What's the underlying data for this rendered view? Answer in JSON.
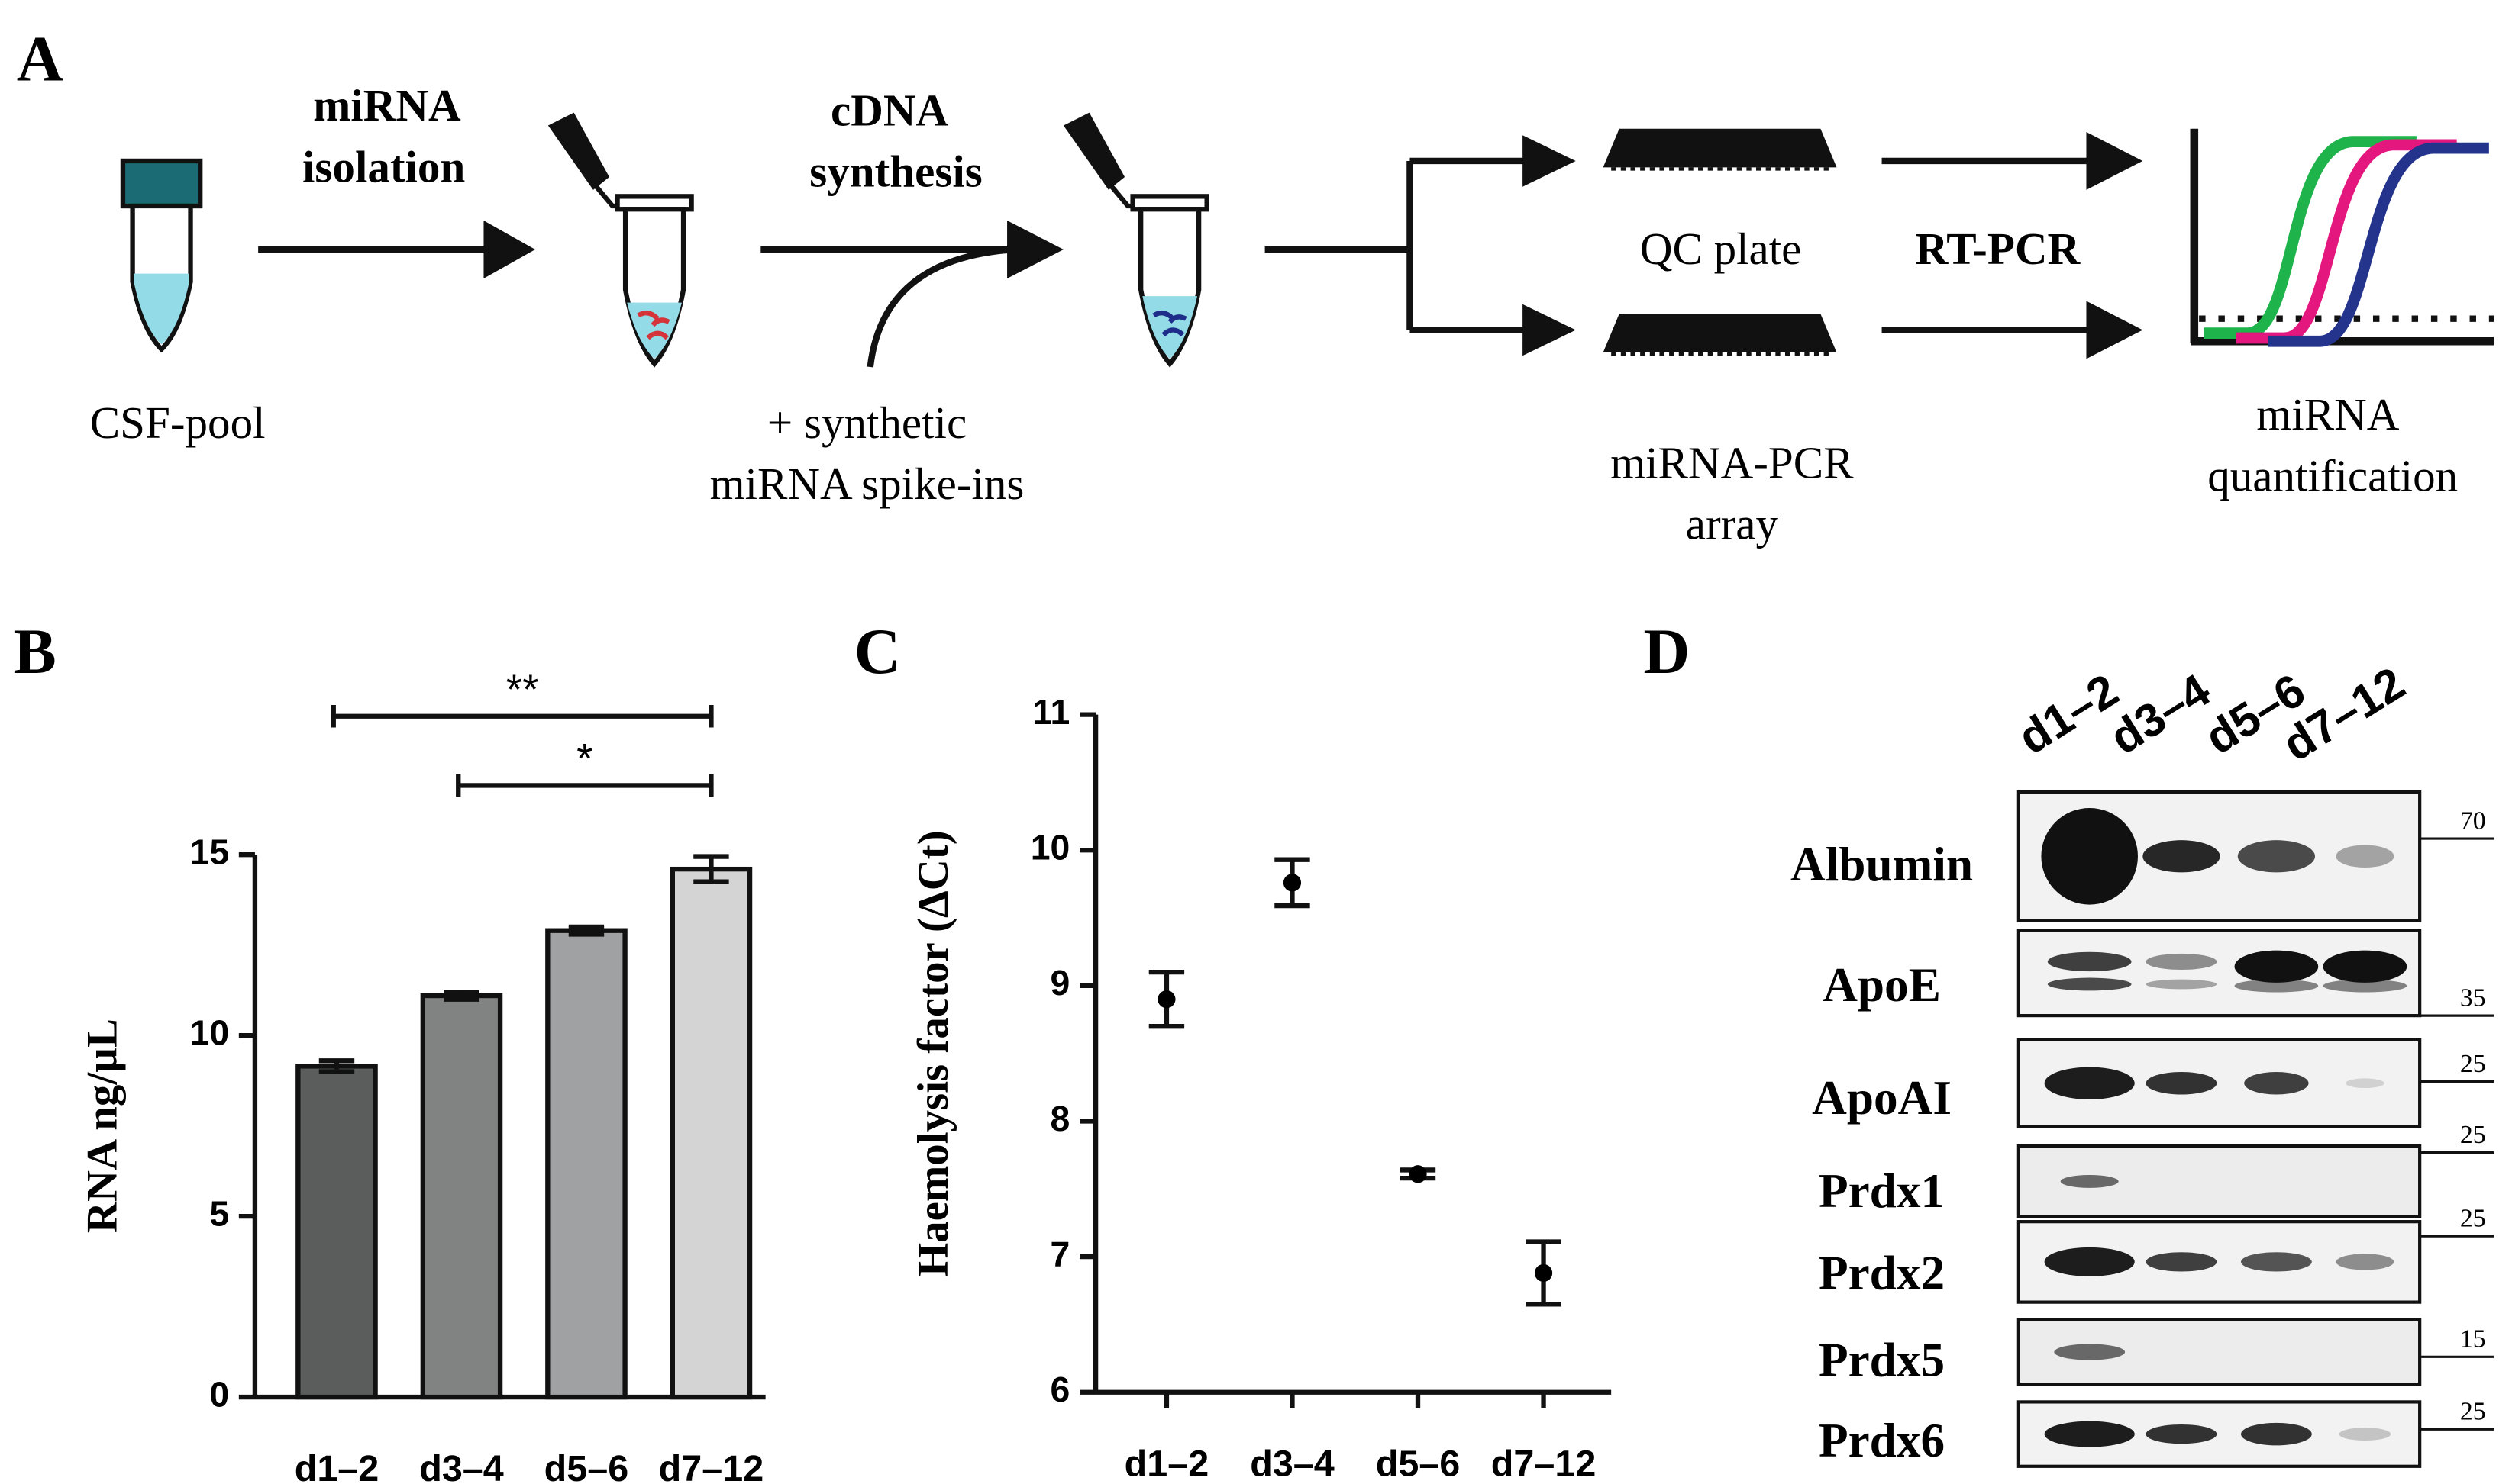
{
  "panel_labels": [
    "A",
    "B",
    "C",
    "D"
  ],
  "workflow": {
    "isolation": [
      "miRNA",
      "isolation"
    ],
    "synthesis": [
      "cDNA",
      "synthesis"
    ],
    "source": "CSF-pool",
    "spike_ins": [
      "+ synthetic",
      "miRNA spike-ins"
    ],
    "qc_plate": "QC plate",
    "rt_pcr": "RT-PCR",
    "array": [
      "miRNA-PCR",
      "array"
    ],
    "quantification": [
      "miRNA",
      "quantification"
    ]
  },
  "chart_data": [
    {
      "type": "bar",
      "ylabel": "RNA ng/µL",
      "categories": [
        "d1–2",
        "d3–4",
        "d5–6",
        "d7–12"
      ],
      "values": [
        9.15,
        11.1,
        12.9,
        14.6
      ],
      "errors": [
        0.15,
        0.1,
        0.1,
        0.35
      ],
      "colors": [
        "#5b5d5d",
        "#818282",
        "#a0a1a3",
        "#d4d4d4"
      ],
      "ylim": [
        0,
        15
      ],
      "yticks": [
        0,
        5,
        10,
        15
      ],
      "significance": [
        {
          "from": 0,
          "to": 3,
          "label": "**"
        },
        {
          "from": 1,
          "to": 3,
          "label": "*"
        }
      ]
    },
    {
      "type": "scatter",
      "ylabel": "Haemolysis factor (ΔCt)",
      "categories": [
        "d1–2",
        "d3–4",
        "d5–6",
        "d7–12"
      ],
      "values": [
        8.9,
        9.76,
        7.61,
        6.88
      ],
      "errors": [
        0.2,
        0.17,
        0.03,
        0.23
      ],
      "color": "#000000",
      "ylim": [
        6,
        11
      ],
      "yticks": [
        6,
        7,
        8,
        9,
        10,
        11
      ]
    }
  ],
  "blot": {
    "lanes": [
      "d1–2",
      "d3–4",
      "d5–6",
      "d7–12"
    ],
    "rows": [
      {
        "protein": "Albumin",
        "marker": 70
      },
      {
        "protein": "ApoE",
        "marker": 35
      },
      {
        "protein": "ApoAI",
        "marker": 25
      },
      {
        "protein": "Prdx1",
        "marker": 25
      },
      {
        "protein": "Prdx2",
        "marker": 25
      },
      {
        "protein": "Prdx5",
        "marker": 15
      },
      {
        "protein": "Prdx6",
        "marker": 25
      }
    ]
  }
}
